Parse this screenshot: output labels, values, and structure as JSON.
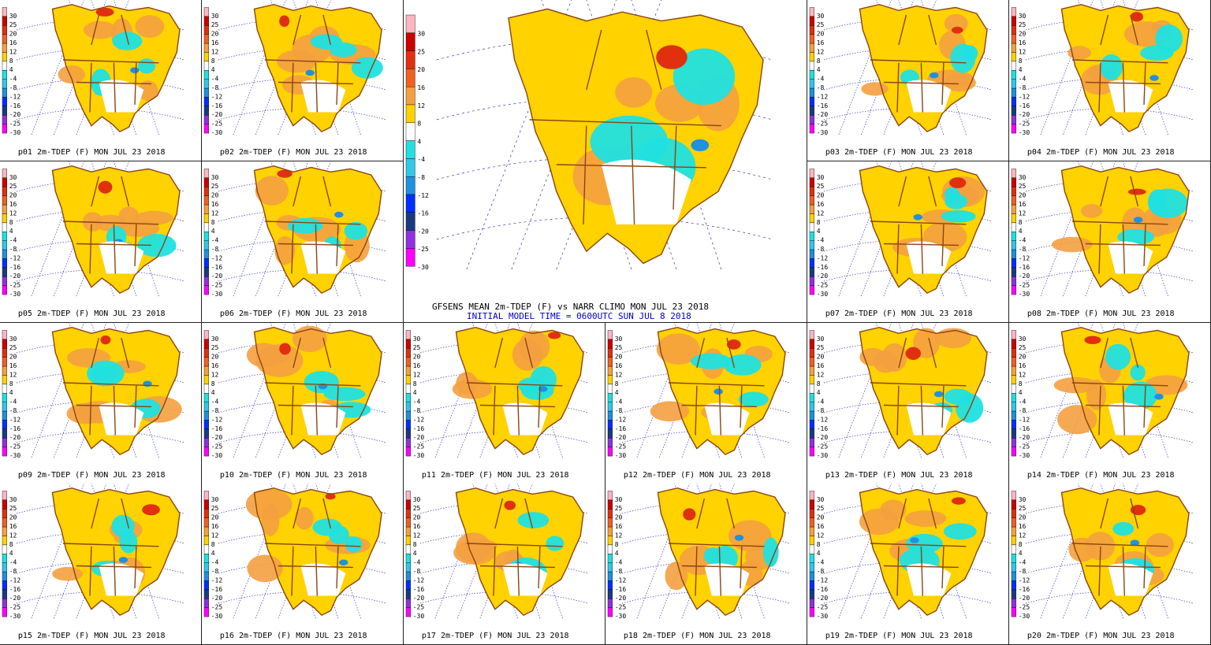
{
  "colorbar": {
    "levels": [
      {
        "label": "30",
        "color": "#ffb6c1"
      },
      {
        "label": "25",
        "color": "#cc0000"
      },
      {
        "label": "20",
        "color": "#e03010"
      },
      {
        "label": "16",
        "color": "#f06020"
      },
      {
        "label": "12",
        "color": "#f4a040"
      },
      {
        "label": "8",
        "color": "#ffd200"
      },
      {
        "label": "4",
        "color": "#ffffff"
      },
      {
        "label": "-4",
        "color": "#20e0e0"
      },
      {
        "label": "-8",
        "color": "#30c8e8"
      },
      {
        "label": "-12",
        "color": "#2090e0"
      },
      {
        "label": "-16",
        "color": "#0030ff"
      },
      {
        "label": "-20",
        "color": "#1a3a80"
      },
      {
        "label": "-25",
        "color": "#9030e0"
      },
      {
        "label": "-30",
        "color": "#ff00ff"
      }
    ]
  },
  "main": {
    "title": "GFSENS MEAN 2m-TDEP (F) vs NARR CLIMO MON JUL 23 2018",
    "subtitle": "INITIAL MODEL TIME = 0600UTC SUN JUL 8 2018"
  },
  "members": [
    {
      "caption": "p01 2m-TDEP (F) MON JUL 23 2018"
    },
    {
      "caption": "p02 2m-TDEP (F) MON JUL 23 2018"
    },
    {
      "caption": "p03 2m-TDEP (F) MON JUL 23 2018"
    },
    {
      "caption": "p04 2m-TDEP (F) MON JUL 23 2018"
    },
    {
      "caption": "p05 2m-TDEP (F) MON JUL 23 2018"
    },
    {
      "caption": "p06 2m-TDEP (F) MON JUL 23 2018"
    },
    {
      "caption": "p07 2m-TDEP (F) MON JUL 23 2018"
    },
    {
      "caption": "p08 2m-TDEP (F) MON JUL 23 2018"
    },
    {
      "caption": "p09 2m-TDEP (F) MON JUL 23 2018"
    },
    {
      "caption": "p10 2m-TDEP (F) MON JUL 23 2018"
    },
    {
      "caption": "p11 2m-TDEP (F) MON JUL 23 2018"
    },
    {
      "caption": "p12 2m-TDEP (F) MON JUL 23 2018"
    },
    {
      "caption": "p13 2m-TDEP (F) MON JUL 23 2018"
    },
    {
      "caption": "p14 2m-TDEP (F) MON JUL 23 2018"
    },
    {
      "caption": "p15 2m-TDEP (F) MON JUL 23 2018"
    },
    {
      "caption": "p16 2m-TDEP (F) MON JUL 23 2018"
    },
    {
      "caption": "p17 2m-TDEP (F) MON JUL 23 2018"
    },
    {
      "caption": "p18 2m-TDEP (F) MON JUL 23 2018"
    },
    {
      "caption": "p19 2m-TDEP (F) MON JUL 23 2018"
    },
    {
      "caption": "p20 2m-TDEP (F) MON JUL 23 2018"
    }
  ]
}
